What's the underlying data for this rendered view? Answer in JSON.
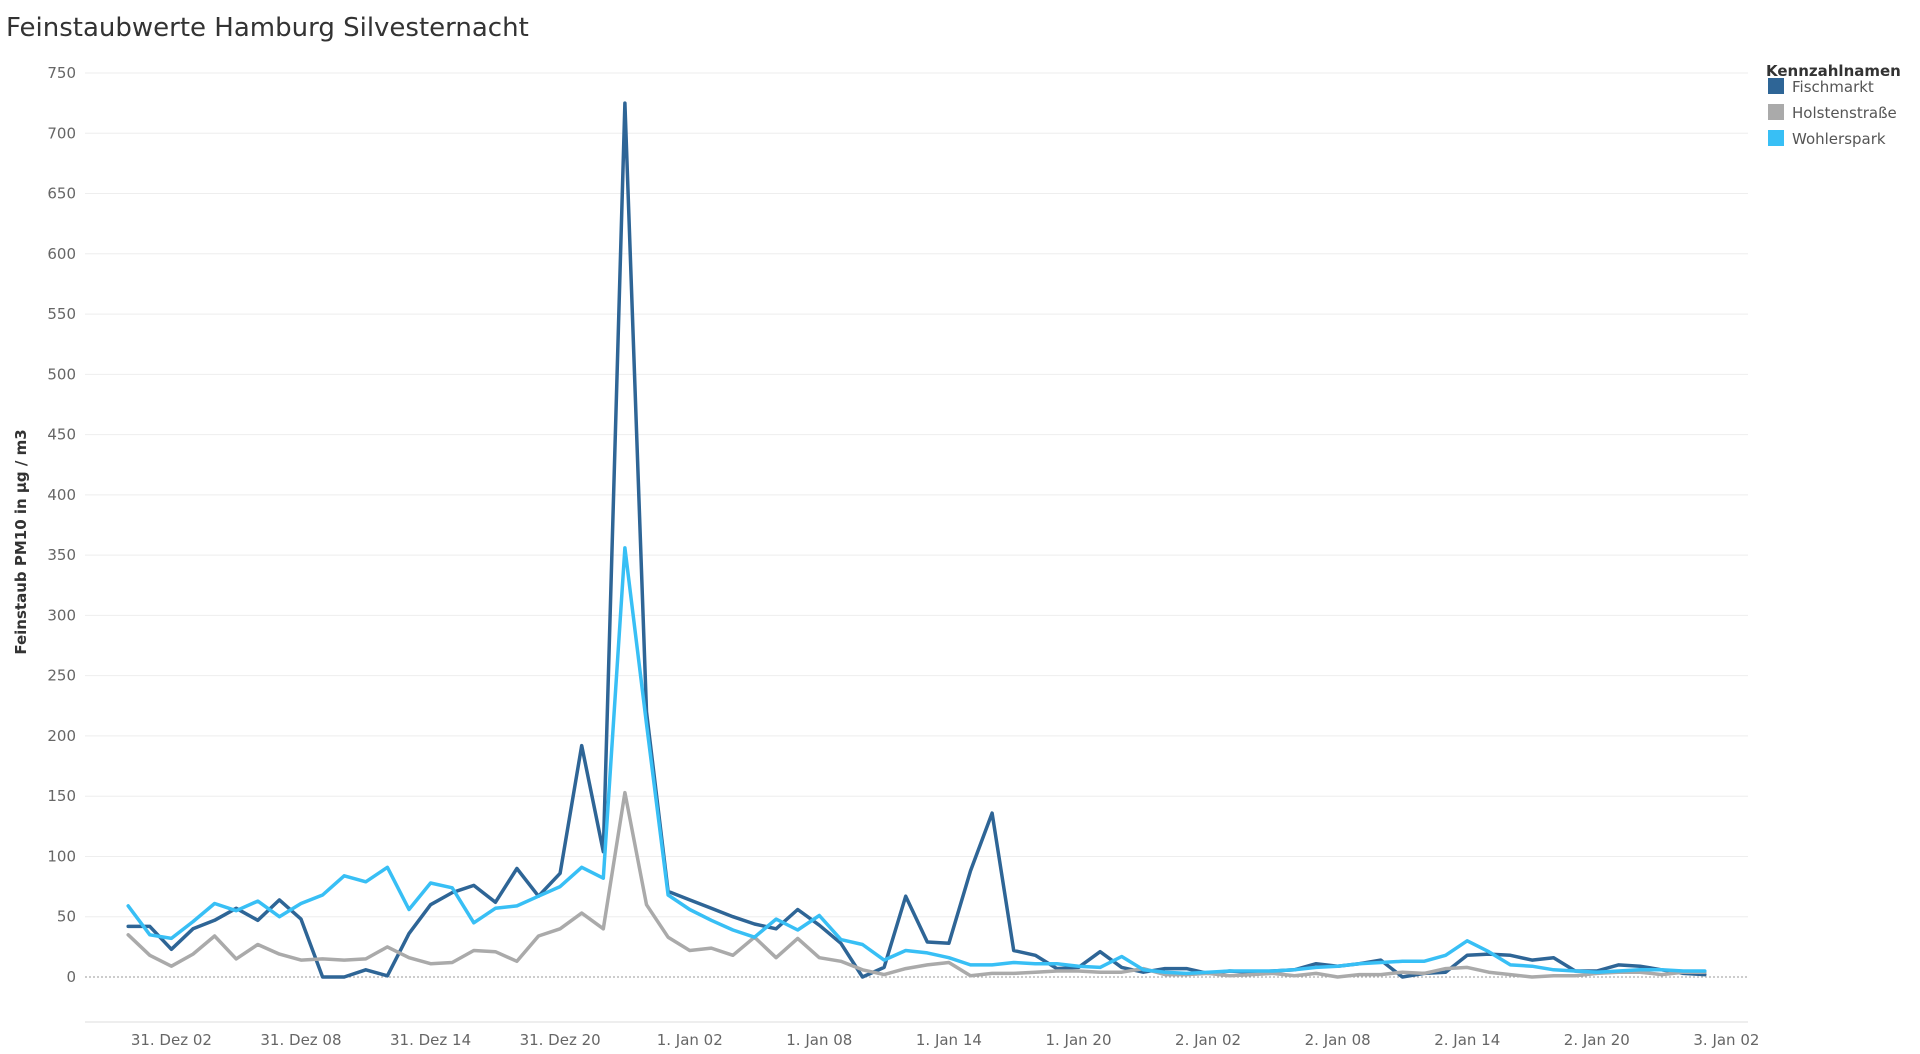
{
  "chart_data": {
    "type": "line",
    "title": "Feinstaubwerte Hamburg Silvesternacht",
    "ylabel": "Feinstaub PM10 in µg / m3",
    "xlabel": "",
    "ylim": [
      -38,
      750
    ],
    "yticks": [
      0,
      50,
      100,
      150,
      200,
      250,
      300,
      350,
      400,
      450,
      500,
      550,
      600,
      650,
      700,
      750
    ],
    "xlim": [
      "30. Dez 22",
      "3. Jan 03"
    ],
    "xticks": [
      {
        "x": "31. Dez 02",
        "label": "31. Dez 02"
      },
      {
        "x": "31. Dez 08",
        "label": "31. Dez 08"
      },
      {
        "x": "31. Dez 14",
        "label": "31. Dez 14"
      },
      {
        "x": "31. Dez 20",
        "label": "31. Dez 20"
      },
      {
        "x": "1. Jan 02",
        "label": "1. Jan 02"
      },
      {
        "x": "1. Jan 08",
        "label": "1. Jan 08"
      },
      {
        "x": "1. Jan 14",
        "label": "1. Jan 14"
      },
      {
        "x": "1. Jan 20",
        "label": "1. Jan 20"
      },
      {
        "x": "2. Jan 02",
        "label": "2. Jan 02"
      },
      {
        "x": "2. Jan 08",
        "label": "2. Jan 08"
      },
      {
        "x": "2. Jan 14",
        "label": "2. Jan 14"
      },
      {
        "x": "2. Jan 20",
        "label": "2. Jan 20"
      },
      {
        "x": "3. Jan 02",
        "label": "3. Jan 02"
      }
    ],
    "x_start": "31. Dez 00",
    "x_step": "1 Stunde",
    "grid": true,
    "legend": {
      "title": "Kennzahlnamen",
      "placement": "top-right"
    },
    "series": [
      {
        "name": "Fischmarkt",
        "color": "#2e6596",
        "values": [
          42,
          42,
          23,
          40,
          47,
          57,
          47,
          64,
          48,
          0,
          0,
          6,
          1,
          36,
          60,
          70,
          76,
          62,
          90,
          67,
          86,
          192,
          104,
          725,
          220,
          71,
          64,
          57,
          50,
          44,
          40,
          56,
          43,
          28,
          0,
          8,
          67,
          29,
          28,
          88,
          136,
          22,
          18,
          7,
          8,
          21,
          8,
          4,
          7,
          7,
          3,
          5,
          4,
          5,
          6,
          11,
          9,
          11,
          14,
          0,
          3,
          4,
          18,
          19,
          18,
          14,
          16,
          5,
          5,
          10,
          9,
          6,
          3,
          2
        ]
      },
      {
        "name": "Holstenstraße",
        "color": "#aaaaaa",
        "values": [
          35,
          18,
          9,
          19,
          34,
          15,
          27,
          19,
          14,
          15,
          14,
          15,
          25,
          16,
          11,
          12,
          22,
          21,
          13,
          34,
          40,
          53,
          40,
          153,
          60,
          33,
          22,
          24,
          18,
          33,
          16,
          32,
          16,
          13,
          6,
          2,
          7,
          10,
          12,
          1,
          3,
          3,
          4,
          5,
          5,
          4,
          4,
          7,
          2,
          2,
          3,
          1,
          2,
          3,
          1,
          3,
          0,
          2,
          2,
          4,
          3,
          7,
          8,
          4,
          2,
          0,
          1,
          1,
          3,
          4,
          4,
          2,
          4,
          4
        ]
      },
      {
        "name": "Wohlerspark",
        "color": "#38bff5",
        "values": [
          59,
          35,
          32,
          46,
          61,
          55,
          63,
          50,
          61,
          68,
          84,
          79,
          91,
          56,
          78,
          74,
          45,
          57,
          59,
          67,
          75,
          91,
          82,
          356,
          210,
          68,
          56,
          47,
          39,
          33,
          48,
          39,
          51,
          31,
          27,
          14,
          22,
          20,
          16,
          10,
          10,
          12,
          11,
          11,
          9,
          8,
          17,
          6,
          4,
          3,
          4,
          5,
          5,
          5,
          6,
          8,
          9,
          11,
          12,
          13,
          13,
          18,
          30,
          21,
          10,
          9,
          6,
          5,
          4,
          5,
          6,
          6,
          5,
          5
        ]
      }
    ]
  }
}
